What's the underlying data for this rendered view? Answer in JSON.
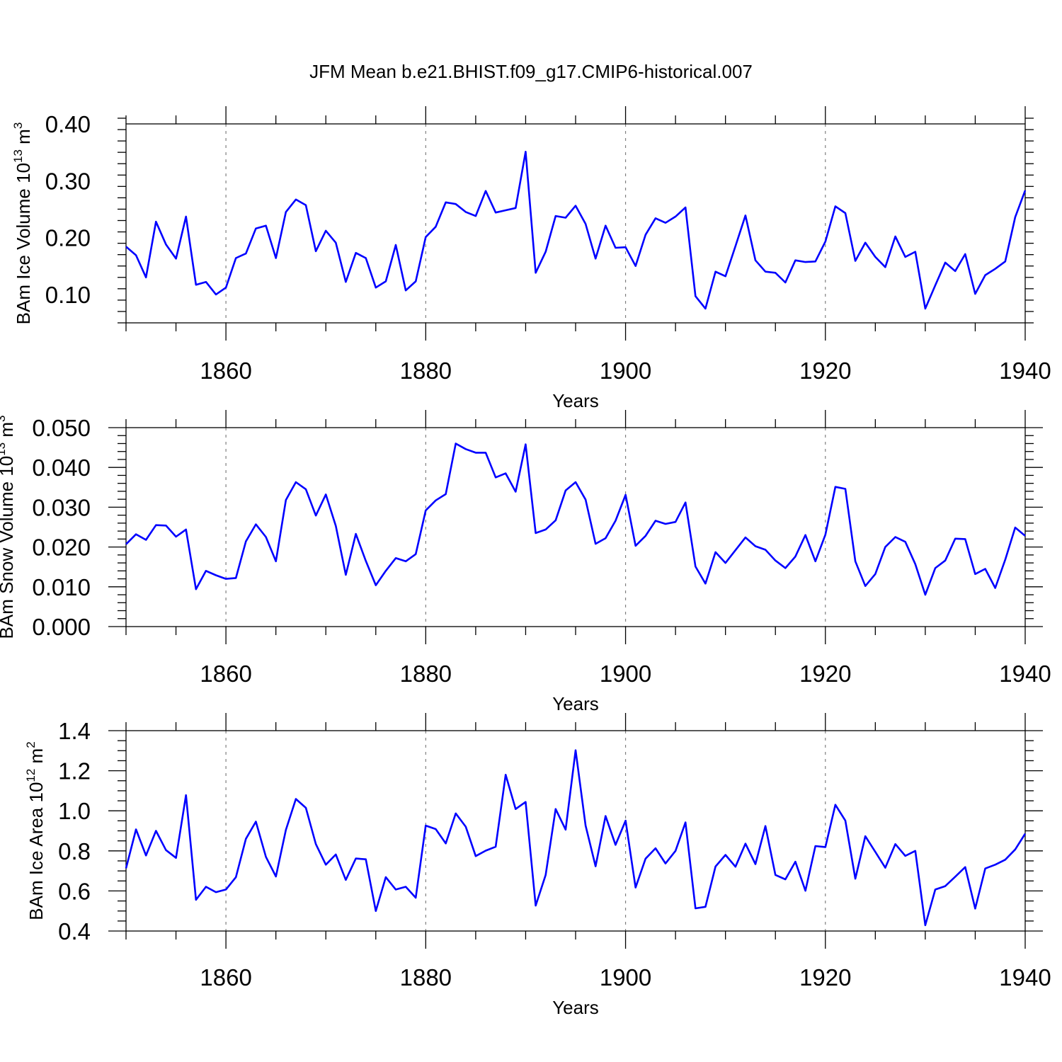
{
  "title": "JFM Mean b.e21.BHIST.f09_g17.CMIP6-historical.007",
  "colors": {
    "line": "#0000ff",
    "grid": "#808080",
    "frame": "#000000"
  },
  "chart_data": [
    {
      "type": "line",
      "title": "JFM Mean b.e21.BHIST.f09_g17.CMIP6-historical.007",
      "xlabel": "Years",
      "ylabel": {
        "text": "BAm Ice Volume 10",
        "exp": "13",
        "unit": " m",
        "unit_exp": "3"
      },
      "xlim": [
        1850,
        1940
      ],
      "ylim": [
        0.05,
        0.4
      ],
      "xticks": [
        1860,
        1880,
        1900,
        1920,
        1940
      ],
      "yticks": [
        0.1,
        0.2,
        0.3,
        0.4
      ],
      "ytick_labels": [
        "0.10",
        "0.20",
        "0.30",
        "0.40"
      ],
      "ytick_minor": 0.02,
      "grid": "vertical dashed at major x ticks",
      "x_start": 1850,
      "series": [
        {
          "values": [
            0.184,
            0.169,
            0.13,
            0.228,
            0.188,
            0.163,
            0.237,
            0.117,
            0.122,
            0.1,
            0.112,
            0.164,
            0.172,
            0.216,
            0.221,
            0.164,
            0.245,
            0.267,
            0.257,
            0.176,
            0.212,
            0.191,
            0.122,
            0.173,
            0.164,
            0.112,
            0.123,
            0.187,
            0.107,
            0.123,
            0.201,
            0.219,
            0.262,
            0.259,
            0.245,
            0.238,
            0.282,
            0.244,
            0.248,
            0.252,
            0.351,
            0.138,
            0.175,
            0.238,
            0.235,
            0.256,
            0.224,
            0.163,
            0.221,
            0.182,
            0.183,
            0.15,
            0.205,
            0.234,
            0.226,
            0.237,
            0.253,
            0.097,
            0.075,
            0.14,
            0.132,
            0.185,
            0.239,
            0.16,
            0.14,
            0.138,
            0.121,
            0.16,
            0.157,
            0.158,
            0.193,
            0.255,
            0.243,
            0.159,
            0.191,
            0.166,
            0.148,
            0.202,
            0.166,
            0.175,
            0.075,
            0.116,
            0.156,
            0.141,
            0.171,
            0.101,
            0.134,
            0.145,
            0.158,
            0.236,
            0.283
          ]
        }
      ]
    },
    {
      "type": "line",
      "xlabel": "Years",
      "ylabel": {
        "text": "BAm Snow Volume 10",
        "exp": "13",
        "unit": " m",
        "unit_exp": "3"
      },
      "xlim": [
        1850,
        1940
      ],
      "ylim": [
        0.0,
        0.05
      ],
      "xticks": [
        1860,
        1880,
        1900,
        1920,
        1940
      ],
      "yticks": [
        0.0,
        0.01,
        0.02,
        0.03,
        0.04,
        0.05
      ],
      "ytick_labels": [
        "0.000",
        "0.010",
        "0.020",
        "0.030",
        "0.040",
        "0.050"
      ],
      "ytick_minor": 0.002,
      "grid": "vertical dashed at major x ticks",
      "x_start": 1850,
      "series": [
        {
          "values": [
            0.0207,
            0.0232,
            0.0218,
            0.0255,
            0.0254,
            0.0226,
            0.0244,
            0.0094,
            0.014,
            0.0129,
            0.012,
            0.0122,
            0.0214,
            0.0257,
            0.0225,
            0.0164,
            0.0318,
            0.0363,
            0.0345,
            0.0279,
            0.0332,
            0.0253,
            0.013,
            0.0233,
            0.0165,
            0.0104,
            0.014,
            0.0172,
            0.0164,
            0.0182,
            0.0292,
            0.0317,
            0.0333,
            0.046,
            0.0446,
            0.0437,
            0.0437,
            0.0375,
            0.0385,
            0.0339,
            0.0458,
            0.0235,
            0.0244,
            0.0267,
            0.0342,
            0.0363,
            0.0319,
            0.0208,
            0.0222,
            0.0266,
            0.0331,
            0.0203,
            0.0228,
            0.0266,
            0.0258,
            0.0263,
            0.0312,
            0.0151,
            0.0108,
            0.0187,
            0.016,
            0.0192,
            0.0224,
            0.0202,
            0.0193,
            0.0166,
            0.0147,
            0.0176,
            0.023,
            0.0164,
            0.0231,
            0.0351,
            0.0346,
            0.0164,
            0.0102,
            0.0132,
            0.02,
            0.0225,
            0.0213,
            0.0157,
            0.008,
            0.0147,
            0.0166,
            0.0221,
            0.022,
            0.0132,
            0.0145,
            0.0097,
            0.0168,
            0.0249,
            0.0228
          ]
        }
      ]
    },
    {
      "type": "line",
      "xlabel": "Years",
      "ylabel": {
        "text": "BAm Ice Area 10",
        "exp": "12",
        "unit": " m",
        "unit_exp": "2"
      },
      "xlim": [
        1850,
        1940
      ],
      "ylim": [
        0.4,
        1.4
      ],
      "xticks": [
        1860,
        1880,
        1900,
        1920,
        1940
      ],
      "yticks": [
        0.4,
        0.6,
        0.8,
        1.0,
        1.2,
        1.4
      ],
      "ytick_labels": [
        "0.4",
        "0.6",
        "0.8",
        "1.0",
        "1.2",
        "1.4"
      ],
      "ytick_minor": 0.05,
      "grid": "vertical dashed at major x ticks",
      "x_start": 1850,
      "series": [
        {
          "values": [
            0.713,
            0.907,
            0.777,
            0.9,
            0.804,
            0.765,
            1.078,
            0.556,
            0.621,
            0.594,
            0.607,
            0.669,
            0.86,
            0.946,
            0.77,
            0.672,
            0.905,
            1.059,
            1.015,
            0.834,
            0.731,
            0.782,
            0.655,
            0.762,
            0.758,
            0.5,
            0.669,
            0.607,
            0.621,
            0.566,
            0.926,
            0.909,
            0.837,
            0.987,
            0.921,
            0.774,
            0.801,
            0.821,
            1.18,
            1.009,
            1.044,
            0.527,
            0.68,
            1.009,
            0.906,
            1.302,
            0.926,
            0.723,
            0.974,
            0.83,
            0.951,
            0.617,
            0.761,
            0.813,
            0.737,
            0.8,
            0.942,
            0.513,
            0.521,
            0.722,
            0.78,
            0.721,
            0.836,
            0.734,
            0.924,
            0.68,
            0.658,
            0.746,
            0.601,
            0.824,
            0.819,
            1.03,
            0.951,
            0.661,
            0.873,
            0.795,
            0.716,
            0.834,
            0.775,
            0.8,
            0.429,
            0.607,
            0.624,
            0.671,
            0.719,
            0.512,
            0.712,
            0.731,
            0.756,
            0.807,
            0.886
          ]
        }
      ]
    }
  ]
}
